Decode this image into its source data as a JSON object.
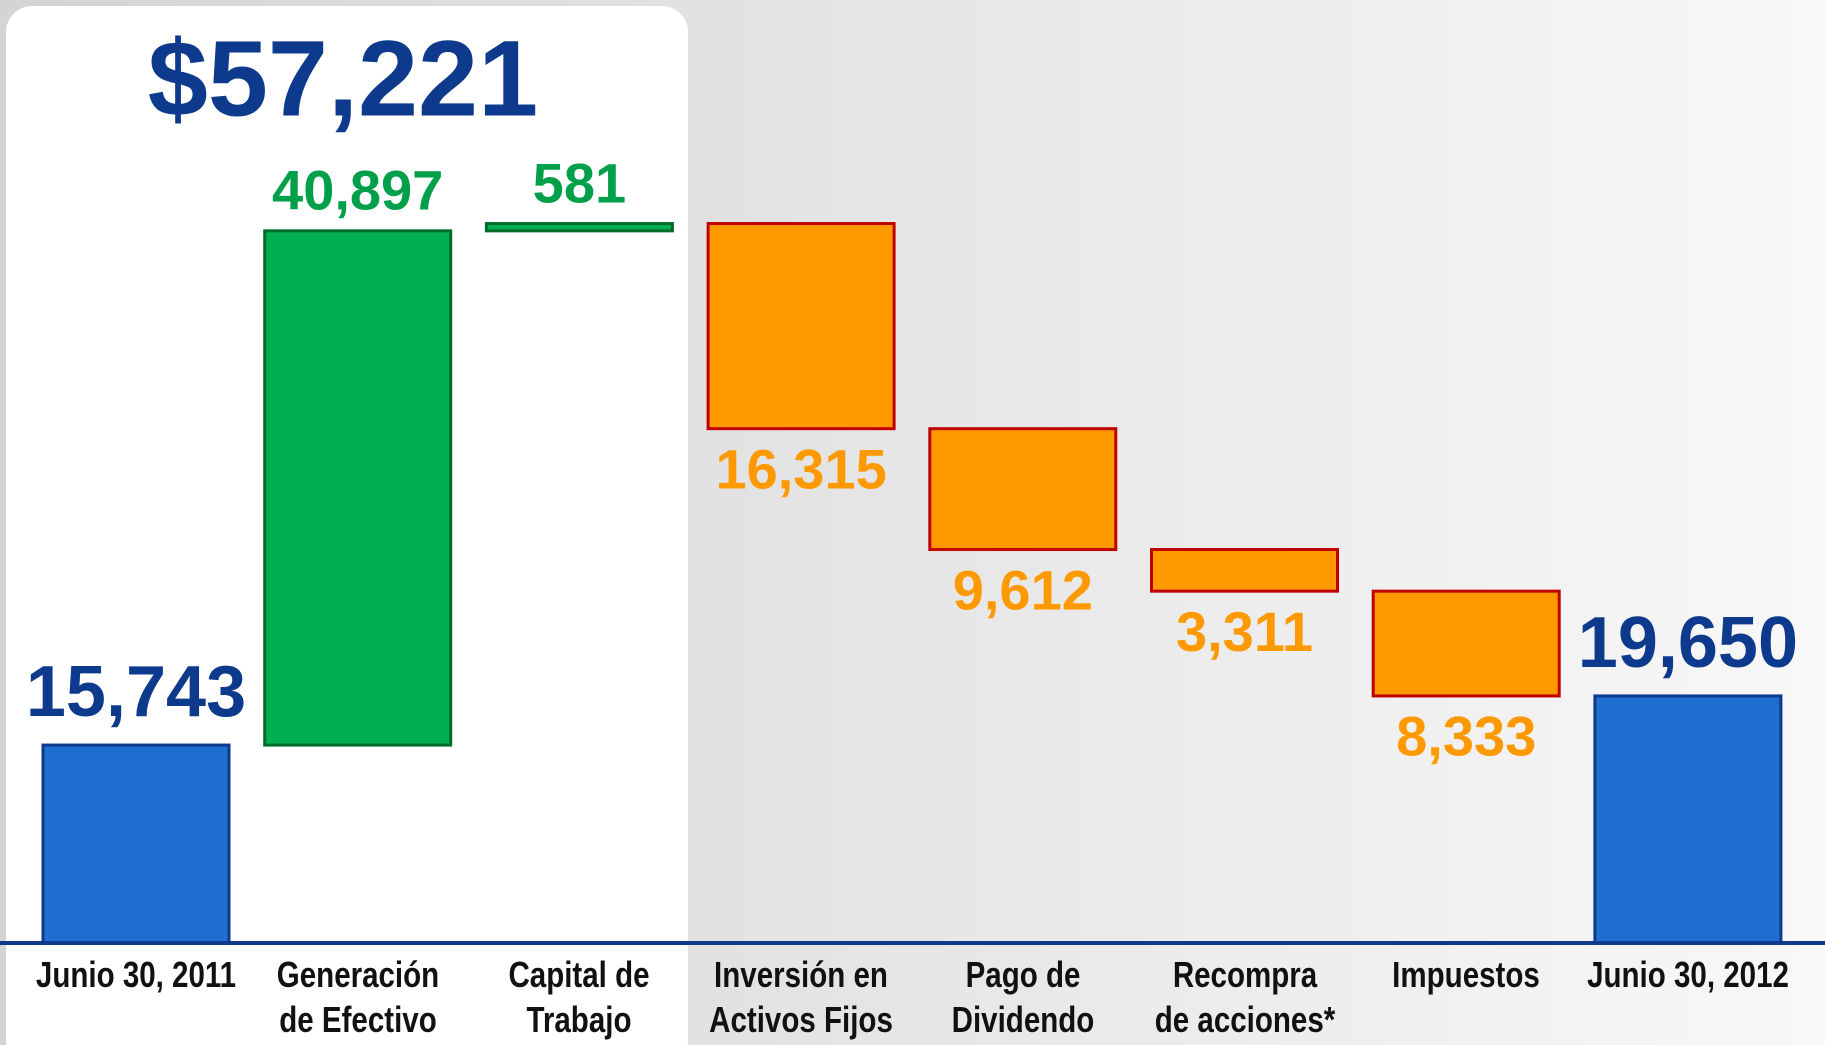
{
  "chart_data": {
    "type": "waterfall",
    "annotation": "$57,221",
    "categories": [
      "Junio 30, 2011",
      "Generación\nde Efectivo",
      "Capital de\nTrabajo",
      "Inversión en\nActivos Fijos",
      "Pago de\nDividendo",
      "Recompra\nde acciones*",
      "Impuestos",
      "Junio 30, 2012"
    ],
    "values": [
      15743,
      40897,
      581,
      -16315,
      -9612,
      -3311,
      -8333,
      19650
    ],
    "value_labels": [
      "15,743",
      "40,897",
      "581",
      "16,315",
      "9,612",
      "3,311",
      "8,333",
      "19,650"
    ],
    "colors": [
      "#1f6fd0",
      "#00b050",
      "#00b050",
      "#ff9900",
      "#ff9900",
      "#ff9900",
      "#ff9900",
      "#1f6fd0"
    ],
    "ylim": [
      0,
      75000
    ]
  }
}
